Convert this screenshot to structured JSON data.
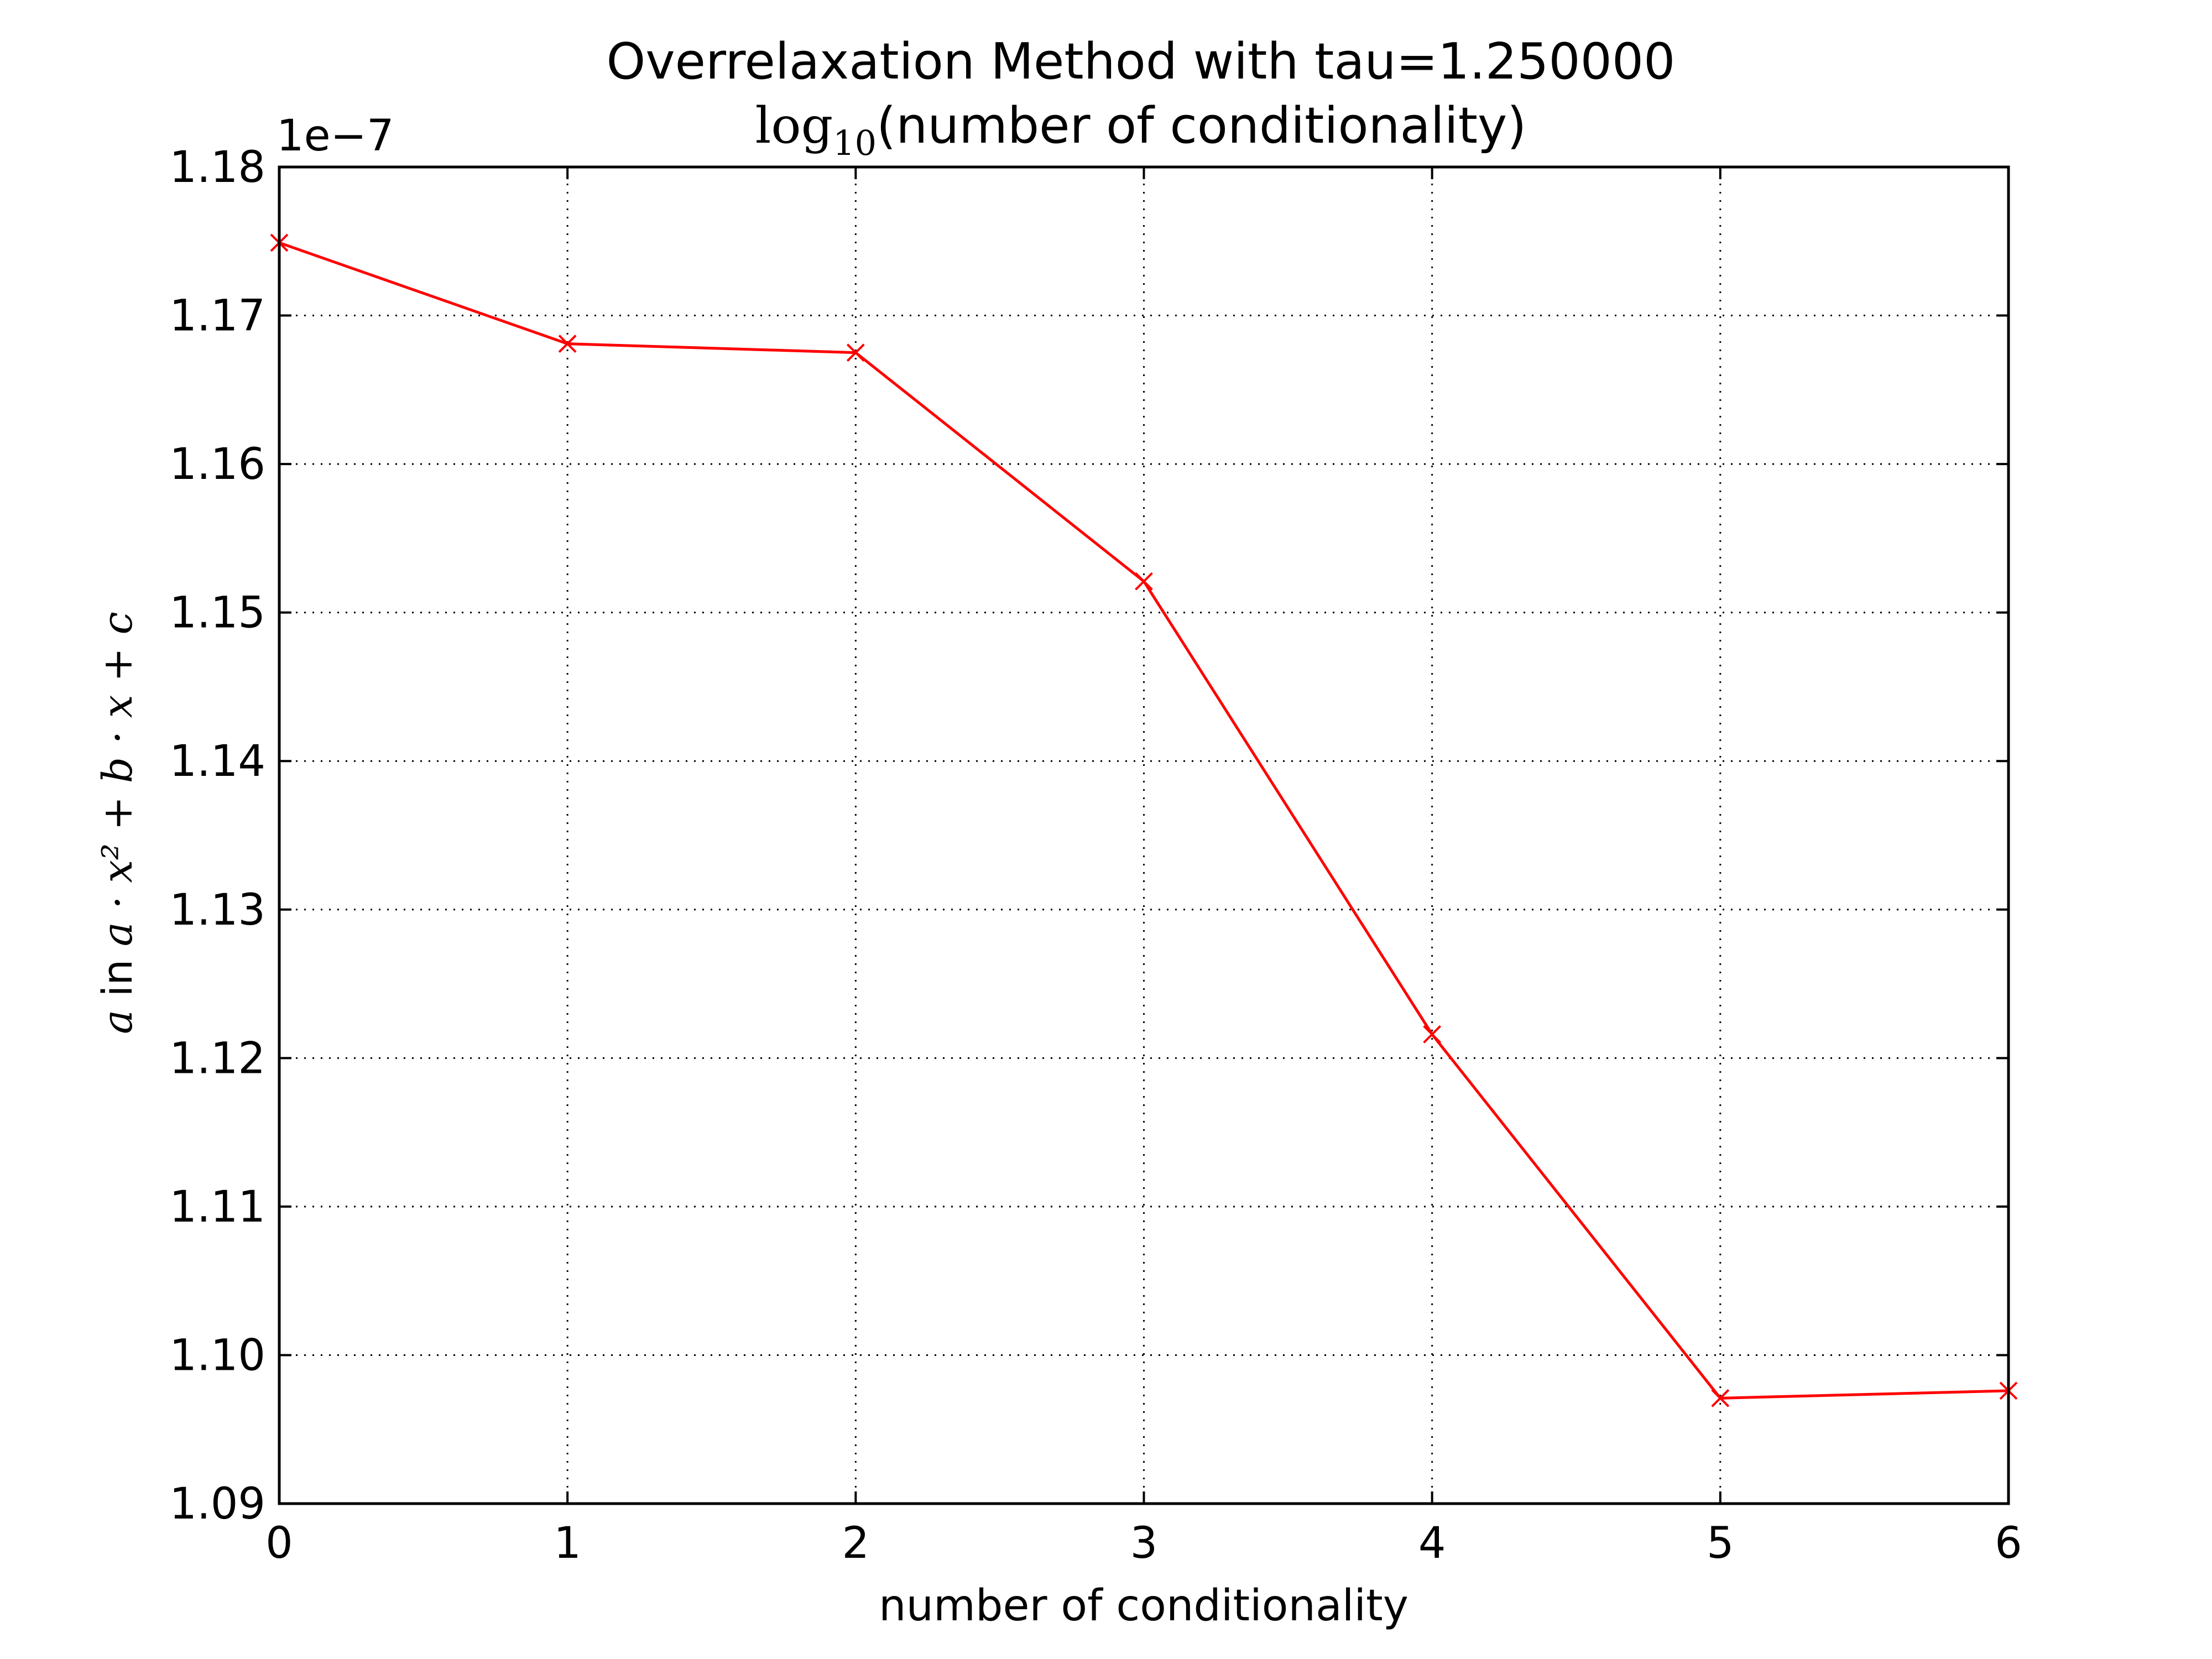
{
  "chart_data": {
    "type": "line",
    "title": "Overrelaxation Method with tau=1.250000",
    "subtitle": "log10(number of conditionality)",
    "subtitle_parts": {
      "log": "log",
      "base": "10",
      "rest": "(number of conditionality)"
    },
    "xlabel": "number of conditionality",
    "ylabel": "a in a·x² + b·x + c",
    "ylabel_parts": {
      "var": "a",
      "word": " in ",
      "formula": "a · x² + b · x + c"
    },
    "offset_text": "1e−7",
    "x": [
      0,
      1,
      2,
      3,
      4,
      5,
      6
    ],
    "xlim": [
      0,
      6
    ],
    "ylim": [
      1.09,
      1.18
    ],
    "xticks": [
      "0",
      "1",
      "2",
      "3",
      "4",
      "5",
      "6"
    ],
    "yticks": [
      "1.09",
      "1.10",
      "1.11",
      "1.12",
      "1.13",
      "1.14",
      "1.15",
      "1.16",
      "1.17",
      "1.18"
    ],
    "grid": true,
    "series": [
      {
        "values": [
          1.1749,
          1.1681,
          1.1675,
          1.1521,
          1.1216,
          1.0971,
          1.0976
        ],
        "color": "#ff0000",
        "marker": "x"
      }
    ]
  }
}
